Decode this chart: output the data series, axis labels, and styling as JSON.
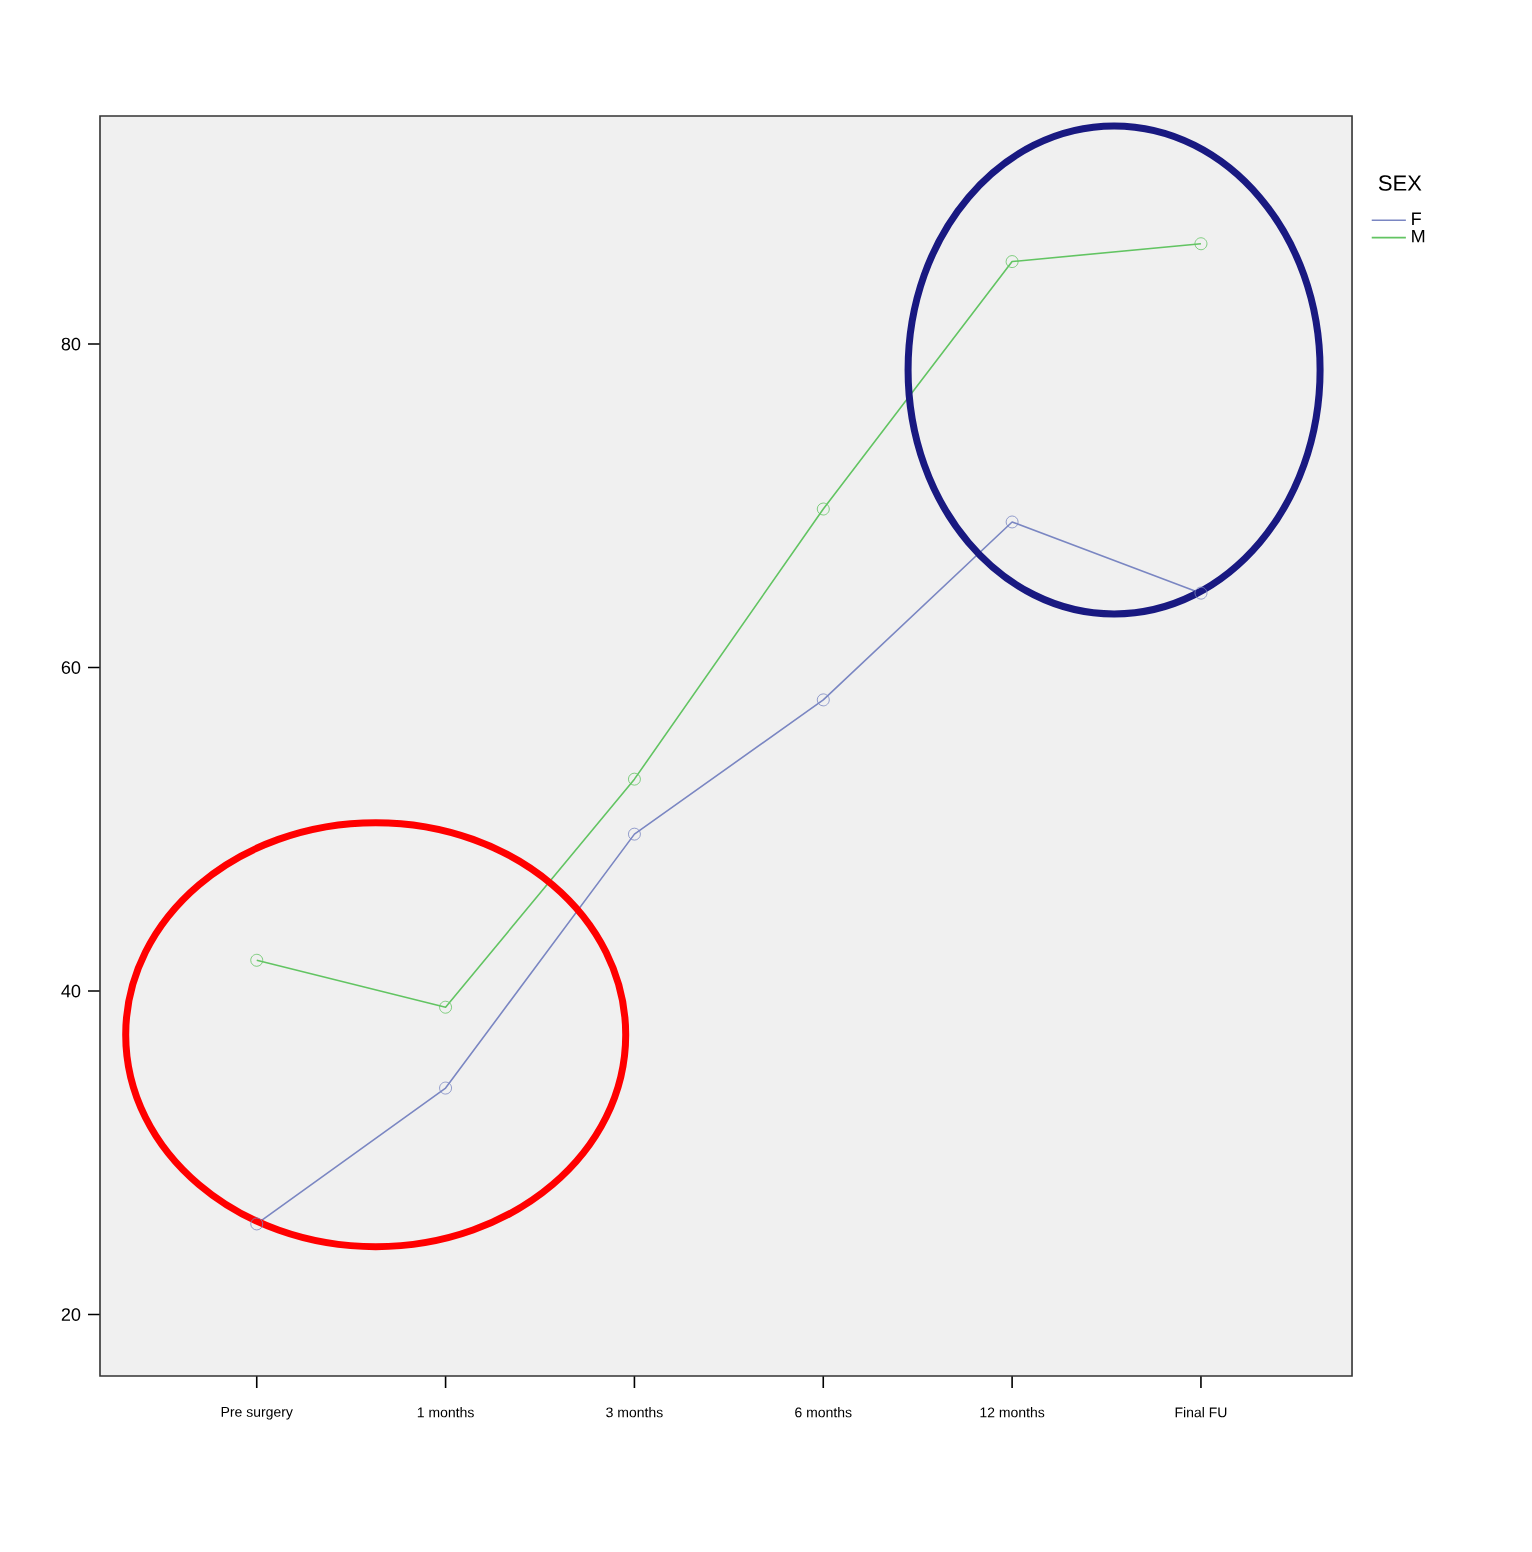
{
  "chart_data": {
    "type": "line",
    "legend_title": "SEX",
    "categories": [
      "Pre surgery",
      "1 months",
      "3 months",
      "6 months",
      "12 months",
      "Final FU"
    ],
    "series": [
      {
        "name": "F",
        "color": "#7a86c2",
        "values": [
          25.6,
          34.0,
          49.7,
          58.0,
          69.0,
          64.6
        ]
      },
      {
        "name": "M",
        "color": "#62c462",
        "values": [
          41.9,
          39.0,
          53.1,
          69.8,
          85.1,
          86.2
        ]
      }
    ],
    "ylim": [
      16.2,
      94.1
    ],
    "yticks": [
      20,
      40,
      60,
      80
    ],
    "grid": false,
    "legend": "top right",
    "marker": "circle",
    "line_style": "solid"
  }
}
